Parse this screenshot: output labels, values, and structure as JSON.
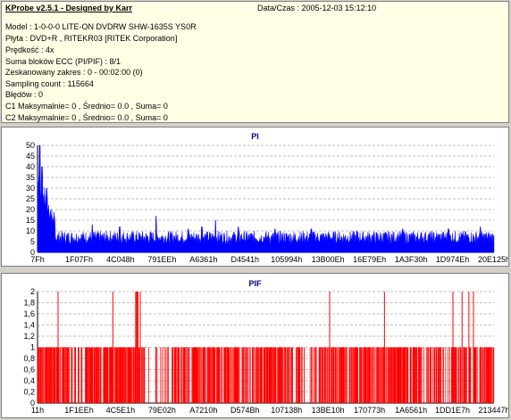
{
  "header": {
    "title": "KProbe v2.5.1 - Designed by Karr",
    "date": "Data/Czas : 2005-12-03 15:12:10"
  },
  "info_lines": [
    "Model : 1-0-0-0 LITE-ON DVDRW SHW-1635S  YS0R",
    "Płyta : DVD+R , RITEKR03 [RITEK Corporation]",
    "Prędkość : 4x",
    "Suma bloków ECC (PI/PIF) : 8/1",
    "Zeskanowany zakres : 0 - 00:02:00 (0)",
    "Sampling count : 115664",
    "Błędów : 0",
    "C1 Maksymalnie= 0 , Średnio= 0.0 , Suma= 0",
    "C2 Maksymalnie= 0 , Średnio= 0.0 , Suma= 0"
  ],
  "chart_data": [
    {
      "type": "area",
      "title": "PI",
      "color": "#0000ff",
      "ylim": [
        0,
        50
      ],
      "yticks": [
        0,
        5,
        10,
        15,
        20,
        25,
        30,
        35,
        40,
        45,
        50
      ],
      "xtick_labels": [
        "7Fh",
        "1F07Fh",
        "4C048h",
        "791EEh",
        "A6361h",
        "D4541h",
        "105994h",
        "13B00Eh",
        "16E79Eh",
        "1A3F30h",
        "1D974Eh",
        "20E125h"
      ],
      "spikes": [
        [
          0.005,
          50
        ],
        [
          0.01,
          40
        ],
        [
          0.02,
          30
        ],
        [
          0.035,
          16
        ],
        [
          0.12,
          13
        ],
        [
          0.18,
          12
        ],
        [
          0.26,
          17
        ],
        [
          0.33,
          11
        ],
        [
          0.36,
          12
        ],
        [
          0.39,
          15
        ],
        [
          0.44,
          12
        ],
        [
          0.52,
          11
        ],
        [
          0.6,
          11
        ],
        [
          0.7,
          10
        ],
        [
          0.8,
          11
        ],
        [
          0.9,
          11
        ],
        [
          0.97,
          12
        ]
      ],
      "baseline": 7
    },
    {
      "type": "bar",
      "title": "PIF",
      "color": "#ff0000",
      "ylim": [
        0,
        2
      ],
      "yticks": [
        "0",
        "0,2",
        "0,4",
        "0,6",
        "0,8",
        "1",
        "1,2",
        "1,4",
        "1,6",
        "1,8",
        "2"
      ],
      "xtick_labels": [
        "11h",
        "1F1EEh",
        "4C5E1h",
        "79E02h",
        "A7210h",
        "D574Bh",
        "107138h",
        "13BE10h",
        "170773h",
        "1A6561h",
        "1DD1E7h",
        "213447h"
      ],
      "twos": [
        0.045,
        0.165,
        0.215,
        0.216,
        0.218,
        0.22,
        0.225,
        0.64,
        0.76,
        0.91,
        0.93,
        0.945,
        0.955
      ]
    }
  ]
}
